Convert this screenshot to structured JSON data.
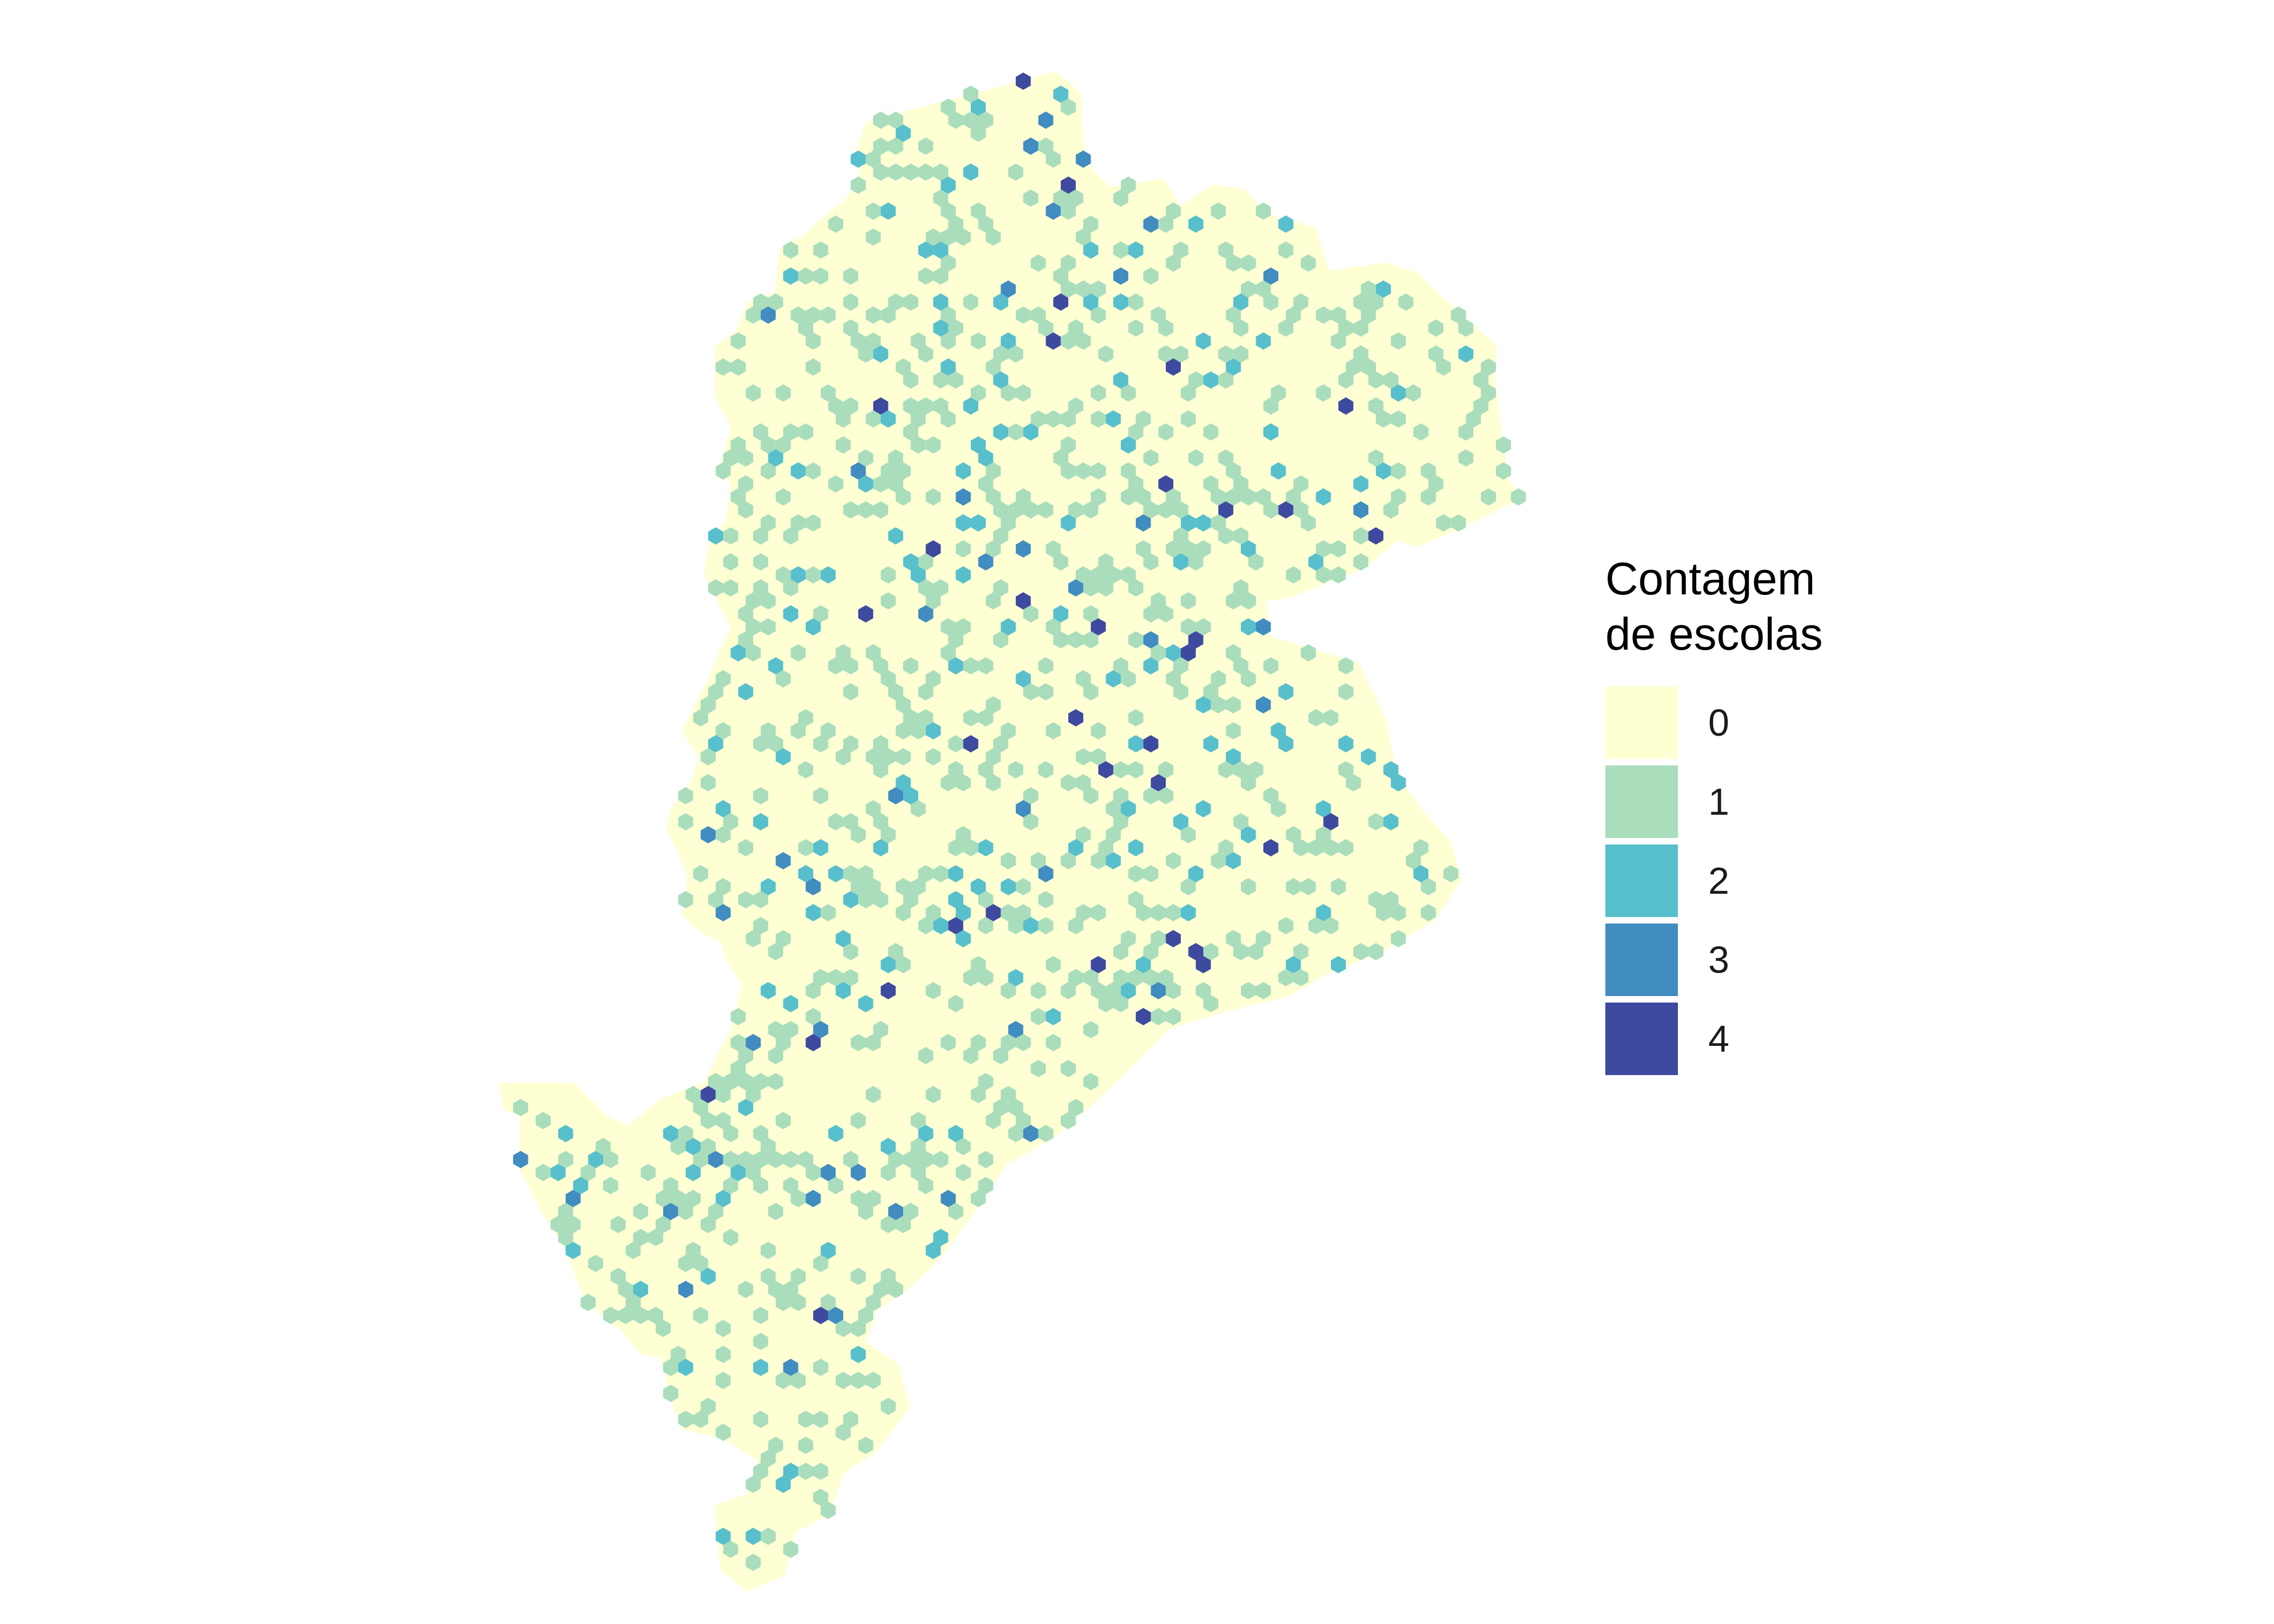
{
  "legend": {
    "title_line1": "Contagem",
    "title_line2": "de escolas",
    "items": [
      {
        "label": "0",
        "color": "#FFFFD4"
      },
      {
        "label": "1",
        "color": "#A9DDBC"
      },
      {
        "label": "2",
        "color": "#58BFCC"
      },
      {
        "label": "3",
        "color": "#418CC0"
      },
      {
        "label": "4",
        "color": "#3E4A9F"
      }
    ]
  },
  "map": {
    "fill_color": "#FFFFD4",
    "background": "#FFFFFF"
  }
}
